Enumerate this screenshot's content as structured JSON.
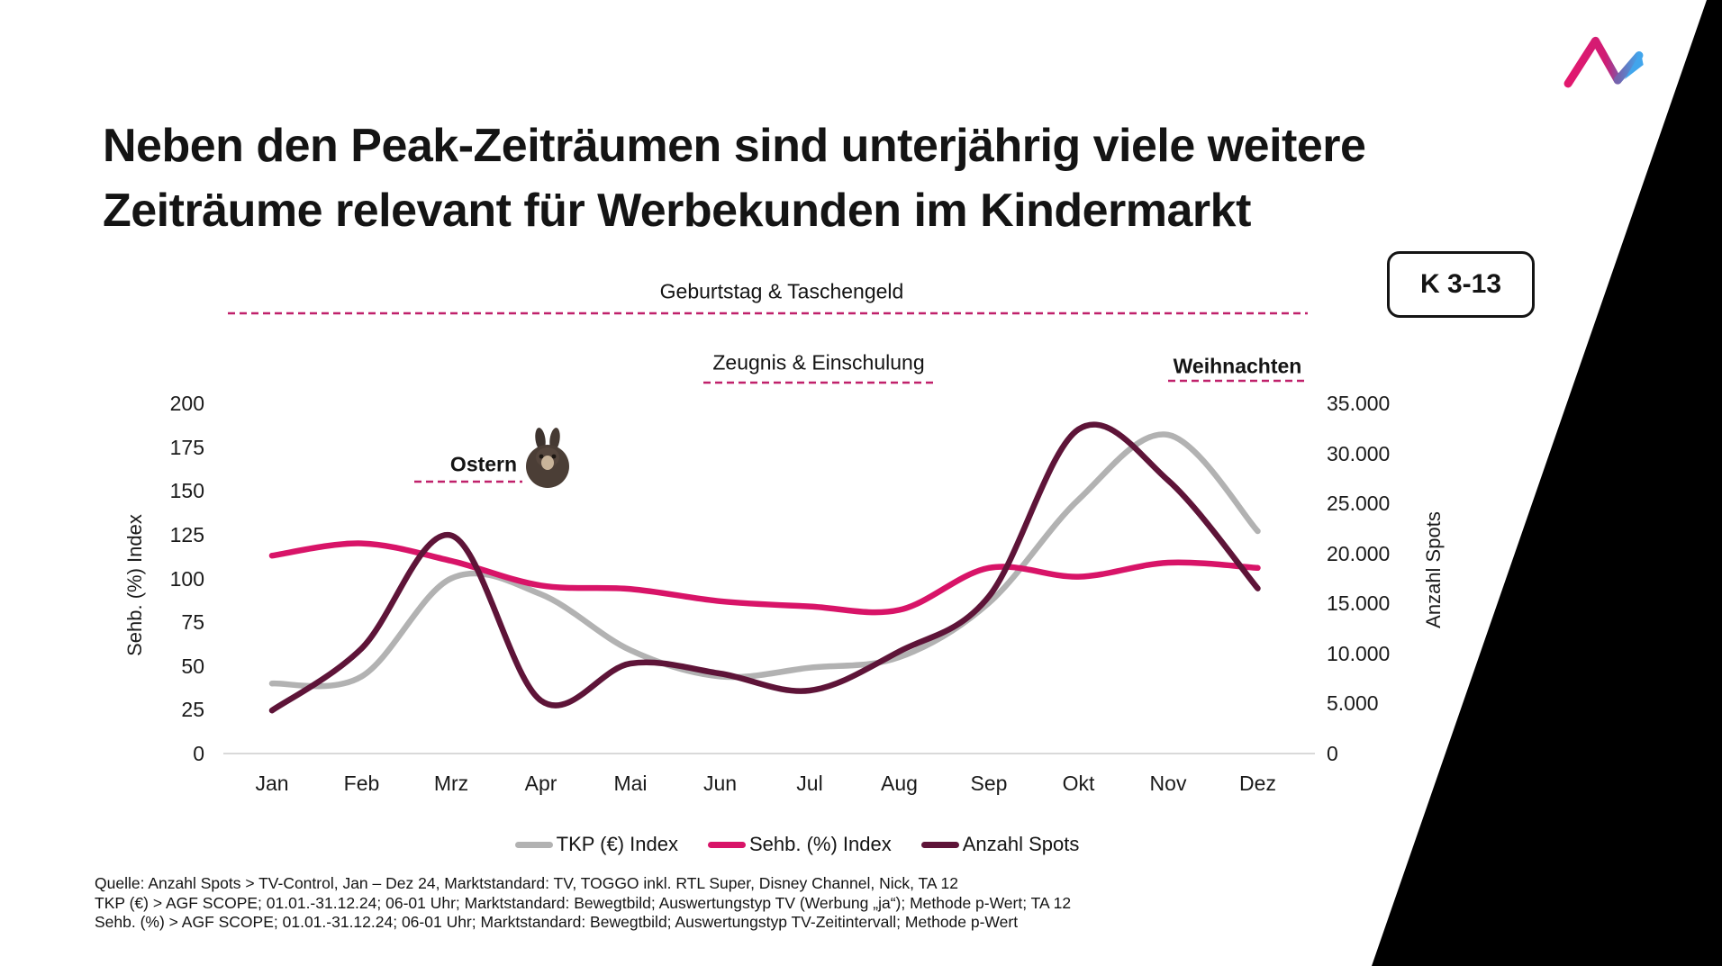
{
  "title": {
    "line1": "Neben den Peak-Zeiträumen sind unterjährig viele weitere",
    "line2": "Zeiträume relevant für Werbekunden im Kindermarkt"
  },
  "badge_label": "K 3-13",
  "logo": {
    "name": "ad-alliance-logo",
    "pink": "#E2186E",
    "purple": "#8A4FA0",
    "blue": "#41A5EC"
  },
  "chart_data": {
    "type": "line",
    "categories": [
      "Jan",
      "Feb",
      "Mrz",
      "Apr",
      "Mai",
      "Jun",
      "Jul",
      "Aug",
      "Sep",
      "Okt",
      "Nov",
      "Dez"
    ],
    "series": [
      {
        "name": "TKP (€) Index",
        "axis": "left",
        "color": "#B2B2B2",
        "values": [
          40,
          44,
          100,
          91,
          59,
          44,
          49,
          55,
          86,
          145,
          182,
          127
        ]
      },
      {
        "name": "Sehb. (%) Index",
        "axis": "left",
        "color": "#D81468",
        "values": [
          113,
          120,
          110,
          96,
          94,
          87,
          84,
          82,
          106,
          101,
          109,
          106
        ]
      },
      {
        "name": "Anzahl Spots",
        "axis": "right",
        "color": "#5E1438",
        "values": [
          4300,
          10500,
          21800,
          5300,
          9000,
          8000,
          6300,
          10200,
          15700,
          32400,
          27300,
          16500
        ]
      }
    ],
    "left_axis": {
      "label": "Sehb. (%) Index",
      "range": [
        0,
        200
      ],
      "ticks": [
        "200",
        "175",
        "150",
        "125",
        "100",
        "75",
        "50",
        "25",
        "0"
      ]
    },
    "right_axis": {
      "label": "Anzahl Spots",
      "range": [
        0,
        35000
      ],
      "ticks": [
        "35.000",
        "30.000",
        "25.000",
        "20.000",
        "15.000",
        "10.000",
        "5.000",
        "0"
      ]
    },
    "grid": false,
    "legend_position": "bottom",
    "annotations": [
      {
        "id": "birthday",
        "text": "Geburtstag & Taschengeld",
        "bold": false
      },
      {
        "id": "zeugnis",
        "text": "Zeugnis & Einschulung",
        "bold": false
      },
      {
        "id": "weihnachten",
        "text": "Weihnachten",
        "bold": true
      },
      {
        "id": "ostern",
        "text": "Ostern",
        "bold": true,
        "icon": "easter-bunny"
      }
    ],
    "annotation_line_color": "#C0216B"
  },
  "sources": [
    "Quelle: Anzahl Spots > TV-Control,  Jan – Dez 24, Marktstandard: TV, TOGGO inkl. RTL Super, Disney Channel, Nick, TA 12",
    "TKP (€) > AGF SCOPE; 01.01.-31.12.24; 06-01 Uhr; Marktstandard: Bewegtbild; Auswertungstyp TV (Werbung „ja“); Methode p-Wert; TA 12",
    "Sehb. (%) > AGF SCOPE; 01.01.-31.12.24; 06-01 Uhr; Marktstandard: Bewegtbild; Auswertungstyp TV-Zeitintervall; Methode p-Wert"
  ]
}
